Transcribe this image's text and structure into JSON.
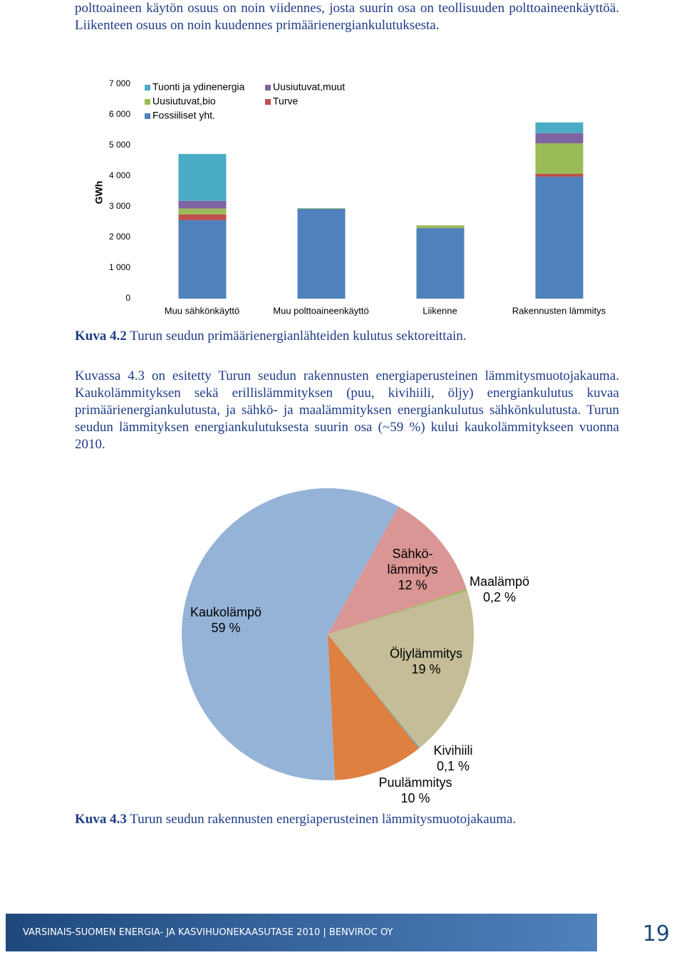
{
  "paragraphs": [
    "polttoaineen käytön osuus on noin viidennes, josta suurin osa on teollisuuden polttoaineenkäyttöä. Liikenteen osuus on noin kuudennes primäärienergiankulutuksesta.",
    "Kuvassa 4.3 on esitetty Turun seudun rakennusten energiaperusteinen lämmitysmuotojakauma. Kaukolämmityksen sekä erillislämmityksen (puu, kivihiili, öljy) energiankulutus kuvaa primäärienergiankulutusta, ja sähkö- ja maalämmityksen energiankulutus sähkönkulutusta. Turun seudun lämmityksen energiankulutuksesta suurin osa (~59 %) kului kaukolämmitykseen vuonna 2010."
  ],
  "captions": [
    {
      "label": "Kuva 4.2",
      "text": "Turun seudun primäärienergianlähteiden kulutus sektoreittain."
    },
    {
      "label": "Kuva 4.3",
      "text": "Turun seudun rakennusten energiaperusteinen lämmitysmuotojakauma."
    }
  ],
  "footer": {
    "text": "VARSINAIS-SUOMEN ENERGIA- JA KASVIHUONEKAASUTASE 2010 | BENVIROC OY",
    "page": "19"
  },
  "chart_data": [
    {
      "type": "stacked-bar",
      "y_label": "GWh",
      "categories": [
        "Muu sähkönkäyttö",
        "Muu polttoaineenkäyttö",
        "Liikenne",
        "Rakennusten lämmitys"
      ],
      "series": [
        {
          "name": "Fossiiliset yht.",
          "color": "#4f81bd",
          "values": [
            2560,
            2930,
            2300,
            3980
          ]
        },
        {
          "name": "Turve",
          "color": "#c0504d",
          "values": [
            190,
            0,
            0,
            90
          ]
        },
        {
          "name": "Uusiutuvat,bio",
          "color": "#9bbb59",
          "values": [
            190,
            20,
            90,
            1000
          ]
        },
        {
          "name": "Uusiutuvat,muut",
          "color": "#8064a2",
          "values": [
            250,
            0,
            0,
            330
          ]
        },
        {
          "name": "Tuonti ja ydinenergia",
          "color": "#4bacc6",
          "values": [
            1530,
            0,
            0,
            350
          ]
        }
      ],
      "ylim": [
        0,
        7000
      ],
      "yticks": [
        0,
        {
          "value": 1000,
          "label": "1 000"
        },
        {
          "value": 2000,
          "label": "2 000"
        },
        {
          "value": 3000,
          "label": "3 000"
        },
        {
          "value": 4000,
          "label": "4 000"
        },
        {
          "value": 5000,
          "label": "5 000"
        },
        {
          "value": 6000,
          "label": "6 000"
        },
        {
          "value": 7000,
          "label": "7 000"
        }
      ]
    },
    {
      "type": "pie",
      "categories": [
        "Sähkö-lämmitys",
        "Maalämpö",
        "Öljylämmitys",
        "Kivihiili",
        "Puulämmitys",
        "Kaukolämpö"
      ],
      "values": [
        12,
        0.2,
        19,
        0.1,
        10,
        59
      ],
      "value_labels": [
        "12 %",
        "0,2 %",
        "19 %",
        "0,1 %",
        "10 %",
        "59 %"
      ],
      "colors": [
        "#d99694",
        "#9bbb59",
        "#c4bd97",
        "#4bacc6",
        "#dd8040",
        "#95b3d7"
      ]
    }
  ]
}
